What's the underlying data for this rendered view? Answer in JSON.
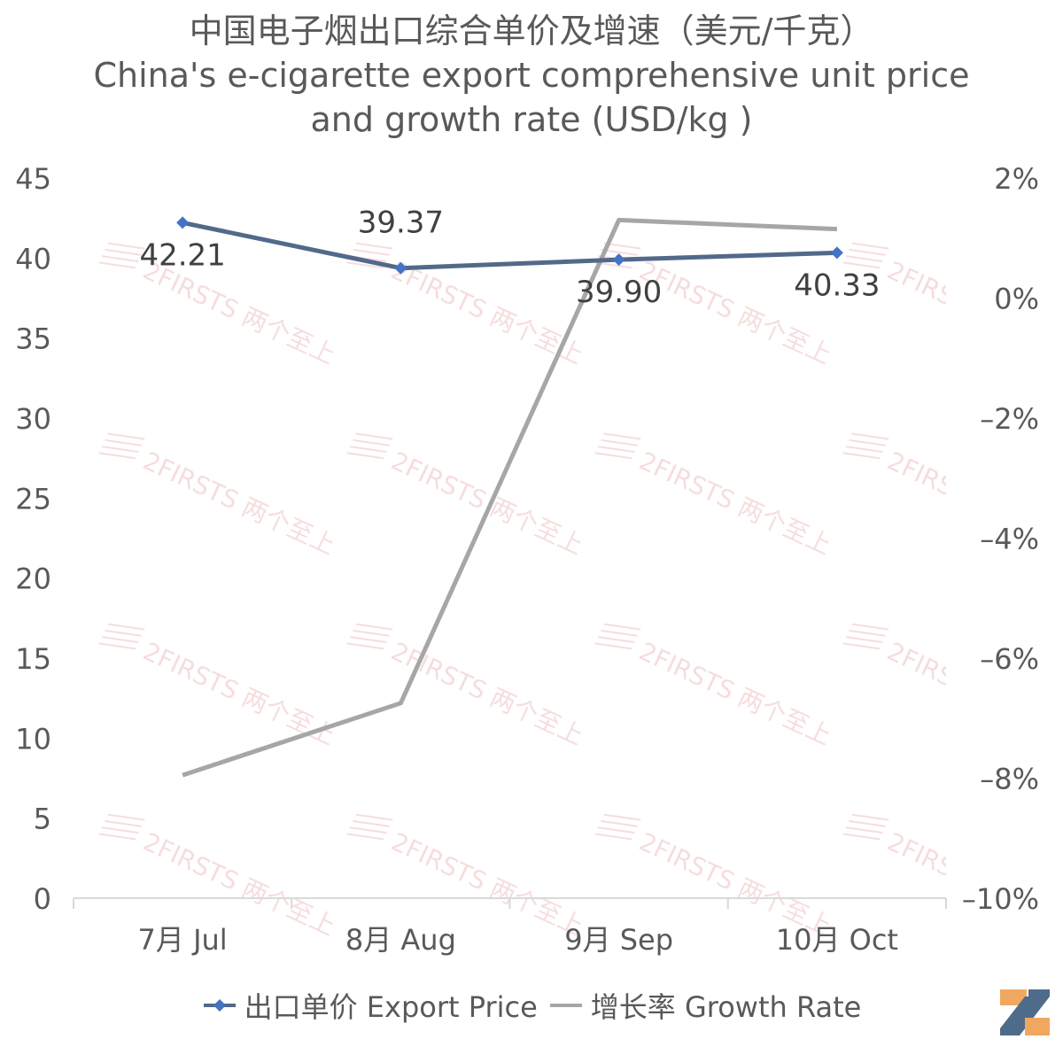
{
  "chart_data": {
    "type": "line",
    "title": "中国电子烟出口综合单价及增速（美元/千克）",
    "subtitle": "China's e-cigarette export comprehensive unit price and growth rate (USD/kg )",
    "categories": [
      "7月 Jul",
      "8月 Aug",
      "9月 Sep",
      "10月 Oct"
    ],
    "series": [
      {
        "name": "出口单价 Export Price",
        "axis": "left",
        "values": [
          42.21,
          39.37,
          39.9,
          40.33
        ],
        "data_labels": [
          "42.21",
          "39.37",
          "39.90",
          "40.33"
        ],
        "color": "#52698A",
        "marker": "diamond"
      },
      {
        "name": "增长率 Growth Rate",
        "axis": "right",
        "values": [
          -0.0795,
          -0.0675,
          0.013,
          0.0115
        ],
        "color": "#A6A6A6",
        "marker": "none"
      }
    ],
    "y_left": {
      "range": [
        0,
        45
      ],
      "ticks": [
        0,
        5,
        10,
        15,
        20,
        25,
        30,
        35,
        40,
        45
      ],
      "tick_labels": [
        "0",
        "5",
        "10",
        "15",
        "20",
        "25",
        "30",
        "35",
        "40",
        "45"
      ]
    },
    "y_right": {
      "range": [
        -0.1,
        0.02
      ],
      "ticks": [
        -0.1,
        -0.08,
        -0.06,
        -0.04,
        -0.02,
        0,
        0.02
      ],
      "tick_labels": [
        "–10%",
        "–8%",
        "–6%",
        "–4%",
        "–2%",
        "0%",
        "2%"
      ]
    },
    "grid": false,
    "legend_position": "bottom"
  },
  "watermark_text": "2FIRSTS 两个至上",
  "logo": "2firsts-logo"
}
